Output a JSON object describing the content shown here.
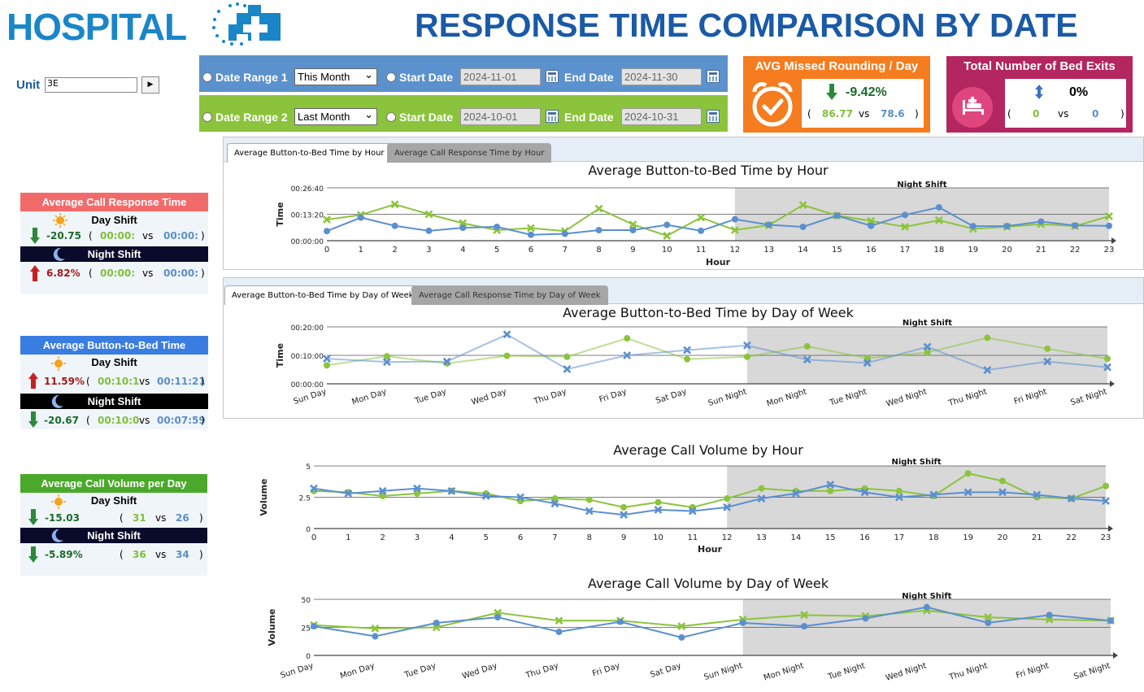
{
  "header": {
    "logo_text": "HOSPITAL",
    "title": "RESPONSE TIME COMPARISON BY DATE"
  },
  "unit": {
    "label": "Unit",
    "value": "3E",
    "go_button_icon": "play-arrow-icon"
  },
  "date_range_1": {
    "label": "Date Range 1",
    "selected": "This Month",
    "start_label": "Start Date",
    "start": "2024-11-01",
    "end_label": "End Date",
    "end": "2024-11-30"
  },
  "date_range_2": {
    "label": "Date Range 2",
    "selected": "Last Month",
    "start_label": "Start Date",
    "start": "2024-10-01",
    "end_label": "End Date",
    "end": "2024-10-31"
  },
  "kpi_missed_rounding": {
    "title": "AVG Missed Rounding / Day",
    "icon": "alarm-clock-check-icon",
    "change": "-9.42%",
    "direction": "down",
    "value_1": "86.77",
    "vs": "vs",
    "value_2": "78.6",
    "open": "(",
    "close": ")"
  },
  "kpi_bed_exits": {
    "title": "Total Number of Bed Exits",
    "icon": "hospital-bed-icon",
    "change": "0%",
    "direction": "neutral",
    "value_1": "0",
    "vs": "vs",
    "value_2": "0",
    "open": "(",
    "close": ")"
  },
  "side_cards": {
    "call_response": {
      "title": "Average Call Response Time",
      "color": "#f26b6b",
      "day": {
        "label": "Day Shift",
        "change": "-20.75",
        "direction": "down",
        "v1": "00:00:",
        "vs": "vs",
        "v2": "00:00:"
      },
      "night": {
        "label": "Night Shift",
        "change": "6.82%",
        "direction": "up",
        "v1": "00:00:",
        "vs": "vs",
        "v2": "00:00:"
      }
    },
    "button_to_bed": {
      "title": "Average Button-to-Bed Time",
      "color": "#3a7de0",
      "day": {
        "label": "Day Shift",
        "change": "11.59%",
        "direction": "up",
        "v1": "00:10:1",
        "vs": "vs",
        "v2": "00:11:21"
      },
      "night": {
        "label": "Night Shift",
        "change": "-20.67",
        "direction": "down",
        "v1": "00:10:0",
        "vs": "vs",
        "v2": "00:07:59"
      }
    },
    "call_volume": {
      "title": "Average Call Volume per Day",
      "color": "#4aa92a",
      "day": {
        "label": "Day Shift",
        "change": "-15.03",
        "direction": "down",
        "v1": "31",
        "vs": "vs",
        "v2": "26"
      },
      "night": {
        "label": "Night Shift",
        "change": "-5.89%",
        "direction": "down",
        "v1": "36",
        "vs": "vs",
        "v2": "34"
      }
    }
  },
  "tabs_hour": {
    "active": "Average Button-to-Bed Time by Hour",
    "inactive": "Average Call Response Time by Hour"
  },
  "tabs_dow": {
    "active": "Average Button-to-Bed Time by Day of Week",
    "inactive": "Average Call Response Time by Day of Week"
  },
  "colors": {
    "green_series": "#8bc43c",
    "blue_series": "#5b8fcf",
    "night_band": "#d8d8d8"
  },
  "chart_data": [
    {
      "type": "line",
      "title": "Average Button-to-Bed Time by Hour",
      "xlabel": "Hour",
      "ylabel": "Time",
      "y_ticks": [
        "00:00:00",
        "00:13:20",
        "00:26:40"
      ],
      "ylim_seconds": [
        0,
        1600
      ],
      "band_label": "Night Shift",
      "band_start": 12,
      "x": [
        0,
        1,
        2,
        3,
        4,
        5,
        6,
        7,
        8,
        9,
        10,
        11,
        12,
        13,
        14,
        15,
        16,
        17,
        18,
        19,
        20,
        21,
        22,
        23
      ],
      "series": [
        {
          "color": "#8bc43c",
          "marker": "x",
          "values": [
            640,
            780,
            1100,
            800,
            530,
            320,
            380,
            290,
            970,
            490,
            150,
            700,
            320,
            470,
            1080,
            760,
            600,
            420,
            620,
            360,
            420,
            500,
            440,
            740
          ]
        },
        {
          "color": "#5b8fcf",
          "marker": "o",
          "values": [
            290,
            700,
            450,
            300,
            390,
            420,
            180,
            210,
            320,
            320,
            480,
            300,
            650,
            480,
            420,
            760,
            450,
            780,
            1010,
            440,
            440,
            580,
            460,
            450
          ]
        }
      ]
    },
    {
      "type": "line",
      "title": "Average Button-to-Bed Time by Day of Week",
      "ylabel": "Time",
      "y_ticks": [
        "00:00:00",
        "00:10:00",
        "00:20:00"
      ],
      "ylim_seconds": [
        0,
        1200
      ],
      "band_label": "Night Shift",
      "band_start": 7,
      "categories": [
        "Sun Day",
        "Mon Day",
        "Tue Day",
        "Wed Day",
        "Thu Day",
        "Fri Day",
        "Sat Day",
        "Sun Night",
        "Mon Night",
        "Tue Night",
        "Wed Night",
        "Thu Night",
        "Fri Night",
        "Sat Night"
      ],
      "series": [
        {
          "color": "#8bc43c",
          "marker": "o",
          "values": [
            390,
            580,
            430,
            590,
            570,
            960,
            520,
            570,
            790,
            540,
            660,
            970,
            740,
            530
          ]
        },
        {
          "color": "#5b8fcf",
          "marker": "x",
          "values": [
            530,
            460,
            470,
            1040,
            310,
            600,
            710,
            810,
            510,
            440,
            780,
            290,
            470,
            350
          ]
        }
      ]
    },
    {
      "type": "line",
      "title": "Average Call Volume by Hour",
      "xlabel": "Hour",
      "ylabel": "Volume",
      "y_ticks": [
        "0",
        "2.5",
        "5"
      ],
      "ylim": [
        0,
        5
      ],
      "band_label": "Night Shift",
      "band_start": 12,
      "x": [
        0,
        1,
        2,
        3,
        4,
        5,
        6,
        7,
        8,
        9,
        10,
        11,
        12,
        13,
        14,
        15,
        16,
        17,
        18,
        19,
        20,
        21,
        22,
        23
      ],
      "series": [
        {
          "color": "#8bc43c",
          "marker": "o",
          "values": [
            3.0,
            2.9,
            2.6,
            2.8,
            3.0,
            2.8,
            2.2,
            2.4,
            2.3,
            1.7,
            2.1,
            1.7,
            2.4,
            3.2,
            3.0,
            3.0,
            3.2,
            3.0,
            2.6,
            4.4,
            3.8,
            2.5,
            2.4,
            3.4
          ]
        },
        {
          "color": "#5b8fcf",
          "marker": "x",
          "values": [
            3.2,
            2.8,
            3.0,
            3.2,
            3.0,
            2.6,
            2.5,
            2.0,
            1.4,
            1.1,
            1.5,
            1.4,
            1.7,
            2.4,
            2.8,
            3.5,
            2.9,
            2.5,
            2.7,
            2.9,
            2.9,
            2.7,
            2.4,
            2.2
          ]
        }
      ]
    },
    {
      "type": "line",
      "title": "Average Call Volume by Day of Week",
      "ylabel": "Volume",
      "y_ticks": [
        "0",
        "25",
        "50"
      ],
      "ylim": [
        0,
        50
      ],
      "band_label": "Night Shift",
      "band_start": 7,
      "categories": [
        "Sun Day",
        "Mon Day",
        "Tue Day",
        "Wed Day",
        "Thu Day",
        "Fri Day",
        "Sat Day",
        "Sun Night",
        "Mon Night",
        "Tue Night",
        "Wed Night",
        "Thu Night",
        "Fri Night",
        "Sat Night"
      ],
      "series": [
        {
          "color": "#8bc43c",
          "marker": "x",
          "values": [
            27,
            24,
            25,
            38,
            31,
            31,
            26,
            32,
            36,
            35,
            40,
            34,
            32,
            31
          ]
        },
        {
          "color": "#5b8fcf",
          "marker": "o",
          "values": [
            26,
            17,
            29,
            34,
            21,
            30,
            16,
            29,
            26,
            33,
            43,
            29,
            36,
            31
          ]
        }
      ]
    }
  ]
}
